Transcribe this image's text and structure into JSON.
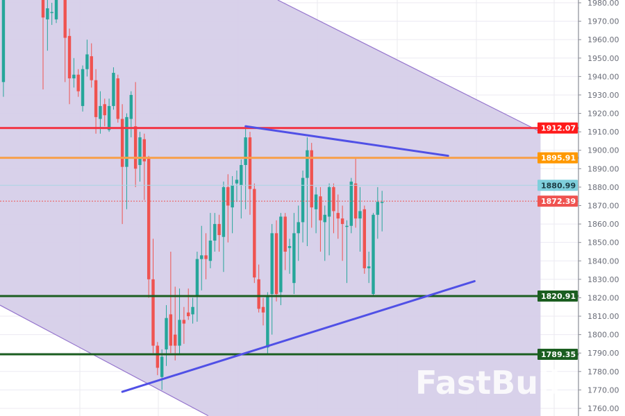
{
  "chart_data": {
    "type": "candlestick",
    "title": "",
    "xlabel": "",
    "ylabel": "",
    "ylim": [
      1757,
      1981
    ],
    "grid": true,
    "y_ticks": [
      "1980.00",
      "1970.00",
      "1960.00",
      "1950.00",
      "1940.00",
      "1930.00",
      "1920.00",
      "1910.00",
      "1900.00",
      "1890.00",
      "1880.00",
      "1870.00",
      "1860.00",
      "1850.00",
      "1840.00",
      "1830.00",
      "1820.00",
      "1810.00",
      "1800.00",
      "1790.00",
      "1780.00",
      "1770.00",
      "1760.00"
    ],
    "candle_fields": [
      "open",
      "high",
      "low",
      "close"
    ],
    "candles": [
      [
        1937,
        1990,
        1929,
        1985
      ],
      null,
      null,
      null,
      null,
      null,
      null,
      null,
      null,
      [
        1985,
        1990,
        1933,
        1972
      ],
      [
        1971,
        1982,
        1954,
        1977
      ],
      [
        1975,
        1980,
        1968,
        1975
      ],
      [
        1971,
        1990,
        1969,
        1985
      ],
      null,
      [
        1985,
        1995,
        1937,
        1961
      ],
      [
        1962,
        1966,
        1925,
        1939
      ],
      [
        1939,
        1950,
        1934,
        1941
      ],
      [
        1941,
        1944,
        1929,
        1932
      ],
      [
        1924,
        1946,
        1921,
        1944
      ],
      [
        1944,
        1960,
        1940,
        1952
      ],
      [
        1951,
        1958,
        1934,
        1938
      ],
      [
        1938,
        1944,
        1909,
        1918
      ],
      [
        1917,
        1932,
        1909,
        1924
      ],
      [
        1925,
        1928,
        1913,
        1919
      ],
      [
        1911,
        1928,
        1910,
        1924
      ],
      [
        1924,
        1945,
        1922,
        1942
      ],
      [
        1939,
        1941,
        1915,
        1917
      ],
      [
        1917,
        1925,
        1860,
        1891
      ],
      [
        1891,
        1920,
        1868,
        1918
      ],
      [
        1917,
        1932,
        1907,
        1930
      ],
      [
        1913,
        1937,
        1880,
        1890
      ],
      [
        1892,
        1910,
        1883,
        1907
      ],
      [
        1906,
        1909,
        1873,
        1894
      ],
      [
        1896,
        1897,
        1820,
        1830
      ],
      [
        1830,
        1852,
        1790,
        1794
      ],
      [
        1794,
        1796,
        1778,
        1782
      ],
      [
        1777,
        1792,
        1770,
        1788
      ],
      [
        1792,
        1816,
        1783,
        1809
      ],
      [
        1811,
        1845,
        1790,
        1794
      ],
      [
        1800,
        1826,
        1786,
        1794
      ],
      [
        1794,
        1825,
        1789,
        1808
      ],
      [
        1808,
        1815,
        1795,
        1806
      ],
      [
        1812,
        1825,
        1808,
        1810
      ],
      [
        1811,
        1820,
        1806,
        1815
      ],
      [
        1821,
        1845,
        1807,
        1841
      ],
      [
        1841,
        1859,
        1824,
        1843
      ],
      [
        1843,
        1855,
        1830,
        1841
      ],
      [
        1840,
        1866,
        1836,
        1851
      ],
      [
        1851,
        1866,
        1845,
        1860
      ],
      [
        1860,
        1865,
        1845,
        1854
      ],
      [
        1853,
        1883,
        1834,
        1880
      ],
      [
        1880,
        1887,
        1850,
        1870
      ],
      [
        1869,
        1886,
        1855,
        1881
      ],
      [
        1882,
        1889,
        1872,
        1884
      ],
      [
        1881,
        1895,
        1863,
        1892
      ],
      [
        1892,
        1912,
        1868,
        1907
      ],
      [
        1907,
        1910,
        1865,
        1879
      ],
      [
        1879,
        1882,
        1828,
        1831
      ],
      [
        1830,
        1838,
        1812,
        1814
      ],
      [
        1815,
        1820,
        1805,
        1812
      ],
      [
        1793,
        1823,
        1789,
        1821
      ],
      [
        1822,
        1860,
        1800,
        1855
      ],
      [
        1855,
        1862,
        1818,
        1822
      ],
      [
        1823,
        1866,
        1816,
        1864
      ],
      [
        1864,
        1866,
        1835,
        1845
      ],
      [
        1847,
        1852,
        1833,
        1848
      ],
      [
        1828,
        1866,
        1822,
        1855
      ],
      [
        1855,
        1870,
        1840,
        1861
      ],
      [
        1861,
        1889,
        1850,
        1885
      ],
      [
        1885,
        1907,
        1848,
        1900
      ],
      [
        1900,
        1904,
        1858,
        1869
      ],
      [
        1868,
        1880,
        1855,
        1876
      ],
      [
        1875,
        1880,
        1845,
        1862
      ],
      [
        1861,
        1870,
        1840,
        1865
      ],
      [
        1864,
        1882,
        1843,
        1880
      ],
      [
        1880,
        1882,
        1855,
        1867
      ],
      [
        1866,
        1876,
        1852,
        1863
      ],
      [
        1863,
        1870,
        1840,
        1860
      ],
      [
        1859,
        1862,
        1828,
        1859
      ],
      [
        1859,
        1885,
        1855,
        1883
      ],
      [
        1882,
        1896,
        1858,
        1863
      ],
      [
        1863,
        1880,
        1845,
        1867
      ],
      [
        1868,
        1870,
        1833,
        1836
      ],
      [
        1836,
        1845,
        1828,
        1837
      ],
      [
        1822,
        1866,
        1821,
        1865
      ],
      [
        1865,
        1880,
        1852,
        1872
      ],
      [
        1872,
        1878,
        1856,
        1872
      ]
    ],
    "colors": {
      "up": "#26a69a",
      "down": "#ef5350",
      "channel_fill": "#d6cfe9",
      "channel_edge": "#9575cd",
      "trendline": "#5050e6"
    },
    "levels": [
      {
        "label": "1912.07",
        "price": 1912.07,
        "color": "#f23645",
        "tag_color": "#ff1a1a",
        "text_color": "#ffffff",
        "style": "solid-thick"
      },
      {
        "label": "1895.91",
        "price": 1895.91,
        "color": "#f7a04b",
        "tag_color": "#ff9800",
        "text_color": "#ffffff",
        "style": "solid-thick"
      },
      {
        "label": "1880.99",
        "price": 1880.99,
        "color": "#a9d6e3",
        "tag_color": "#7fcfdc",
        "text_color": "#1d3c44",
        "style": "thin"
      },
      {
        "label": "1872.39",
        "price": 1872.39,
        "color": "#ef5350",
        "tag_color": "#ef5350",
        "text_color": "#ffffff",
        "style": "dotted"
      },
      {
        "label": "1820.91",
        "price": 1820.91,
        "color": "#1b5e20",
        "tag_color": "#1b5e20",
        "text_color": "#ffffff",
        "style": "solid-thick"
      },
      {
        "label": "1789.35",
        "price": 1789.35,
        "color": "#1b5e20",
        "tag_color": "#1b5e20",
        "text_color": "#ffffff",
        "style": "solid-thick"
      }
    ],
    "trendlines": [
      {
        "from": [
          55,
          1913
        ],
        "to": [
          101,
          1897
        ]
      },
      {
        "from": [
          27,
          1769
        ],
        "to": [
          107,
          1829
        ]
      }
    ],
    "channel": {
      "upper": {
        "from": [
          62.3,
          1981.5
        ],
        "to": [
          122,
          1910
        ]
      },
      "lower": {
        "from": [
          -0.8,
          1816
        ],
        "to": [
          46.5,
          1756
        ]
      }
    }
  },
  "watermark": "FastBull"
}
